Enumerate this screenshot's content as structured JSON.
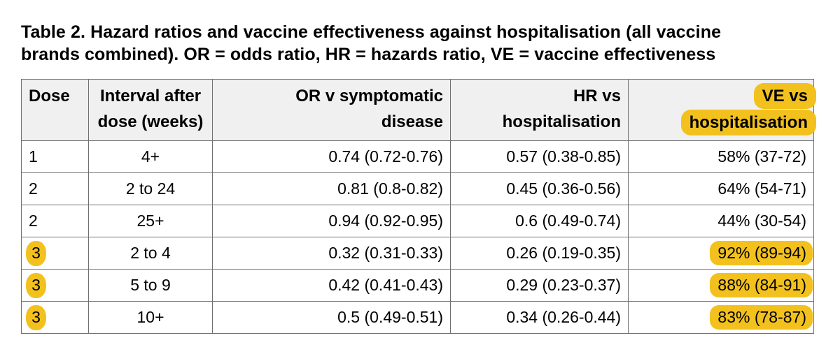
{
  "caption": {
    "line1": "Table 2. Hazard ratios and vaccine effectiveness against hospitalisation (all vaccine",
    "line2": "brands combined). OR = odds ratio, HR = hazards ratio, VE = vaccine effectiveness"
  },
  "colors": {
    "highlight": "#F2C11E",
    "header_background": "#F0F0F0",
    "border": "#6f6f6f",
    "text": "#000000"
  },
  "table": {
    "columns": [
      {
        "id": "dose",
        "label": "Dose",
        "align": "left"
      },
      {
        "id": "interval",
        "label_line1": "Interval after",
        "label_line2": "dose (weeks)",
        "align": "left"
      },
      {
        "id": "or",
        "label_line1": "OR v symptomatic",
        "label_line2": "disease",
        "align": "right"
      },
      {
        "id": "hr",
        "label_line1": "HR vs",
        "label_line2": "hospitalisation",
        "align": "right"
      },
      {
        "id": "ve",
        "label_line1": "VE vs",
        "label_line2": "hospitalisation",
        "align": "right",
        "highlighted": true
      }
    ],
    "rows": [
      {
        "dose": "1",
        "interval": "4+",
        "or": "0.74 (0.72-0.76)",
        "hr": "0.57 (0.38-0.85)",
        "ve": "58% (37-72)",
        "highlighted": false
      },
      {
        "dose": "2",
        "interval": "2 to 24",
        "or": "0.81 (0.8-0.82)",
        "hr": "0.45 (0.36-0.56)",
        "ve": "64% (54-71)",
        "highlighted": false
      },
      {
        "dose": "2",
        "interval": "25+",
        "or": "0.94 (0.92-0.95)",
        "hr": "0.6 (0.49-0.74)",
        "ve": "44% (30-54)",
        "highlighted": false
      },
      {
        "dose": "3",
        "interval": "2 to 4",
        "or": "0.32 (0.31-0.33)",
        "hr": "0.26 (0.19-0.35)",
        "ve": "92% (89-94)",
        "highlighted": true
      },
      {
        "dose": "3",
        "interval": "5 to 9",
        "or": "0.42 (0.41-0.43)",
        "hr": "0.29 (0.23-0.37)",
        "ve": "88% (84-91)",
        "highlighted": true
      },
      {
        "dose": "3",
        "interval": "10+",
        "or": "0.5 (0.49-0.51)",
        "hr": "0.34 (0.26-0.44)",
        "ve": "83% (78-87)",
        "highlighted": true
      }
    ]
  }
}
